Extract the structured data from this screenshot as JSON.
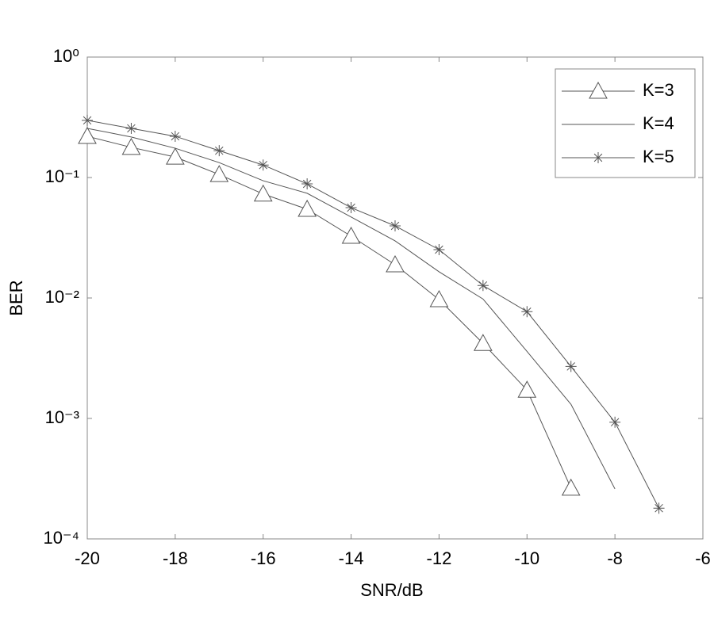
{
  "chart_data": {
    "type": "line",
    "x_label": "SNR/dB",
    "y_label": "BER",
    "log_y": true,
    "grid": false,
    "legend": "upper right",
    "xlim": [
      -20,
      -6
    ],
    "xticks": [
      -20,
      -18,
      -16,
      -14,
      -12,
      -10,
      -8,
      -6
    ],
    "ylim": [
      0.0001,
      1
    ],
    "yticks": [
      {
        "value": 1,
        "label": "10⁰"
      },
      {
        "value": 0.1,
        "label": "10⁻¹"
      },
      {
        "value": 0.01,
        "label": "10⁻²"
      },
      {
        "value": 0.001,
        "label": "10⁻³"
      },
      {
        "value": 0.0001,
        "label": "10⁻⁴"
      }
    ],
    "series": [
      {
        "name": "K=3",
        "color": "#555555",
        "marker": "triangle",
        "x": [
          -20,
          -19,
          -18,
          -17,
          -16,
          -15,
          -14,
          -13,
          -12,
          -11,
          -10,
          -9
        ],
        "values": [
          0.22,
          0.178,
          0.148,
          0.106,
          0.073,
          0.0546,
          0.0326,
          0.0189,
          0.0097,
          0.0042,
          0.00172,
          0.000264
        ]
      },
      {
        "name": "K=4",
        "color": "#555555",
        "marker": "none",
        "x": [
          -20,
          -19,
          -18,
          -17,
          -16,
          -15,
          -14,
          -13,
          -12,
          -11,
          -10,
          -9,
          -8
        ],
        "values": [
          0.256,
          0.217,
          0.175,
          0.133,
          0.094,
          0.074,
          0.047,
          0.0298,
          0.0165,
          0.0098,
          0.0036,
          0.00131,
          0.00026
        ]
      },
      {
        "name": "K=5",
        "color": "#555555",
        "marker": "star",
        "x": [
          -20,
          -19,
          -18,
          -17,
          -16,
          -15,
          -14,
          -13,
          -12,
          -11,
          -10,
          -9,
          -8,
          -7
        ],
        "values": [
          0.298,
          0.256,
          0.22,
          0.167,
          0.127,
          0.0886,
          0.0562,
          0.0397,
          0.0252,
          0.0127,
          0.0077,
          0.0027,
          0.00093,
          0.00018
        ]
      }
    ]
  }
}
